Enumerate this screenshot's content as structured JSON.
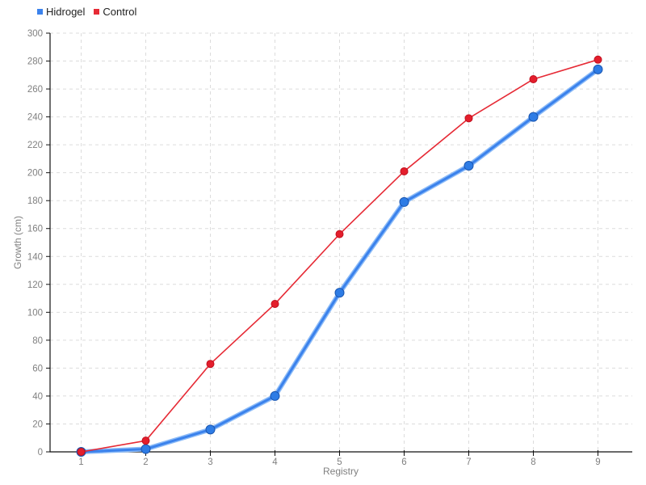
{
  "chart_data": {
    "type": "line",
    "title": "",
    "xlabel": "Registry",
    "ylabel": "Growth (cm)",
    "x": [
      1,
      2,
      3,
      4,
      5,
      6,
      7,
      8,
      9
    ],
    "xlim": [
      1,
      9
    ],
    "ylim": [
      0,
      300
    ],
    "ytick_step": 20,
    "grid": true,
    "legend_position": "top-left",
    "series": [
      {
        "name": "Hidrogel",
        "values": [
          0,
          2,
          16,
          40,
          114,
          179,
          205,
          240,
          274
        ],
        "line_color": "#3b82ec",
        "halo_color": "#8cbbf7",
        "line_width": 3,
        "halo_width": 6,
        "marker_fill": "#2e7ce5",
        "marker_stroke": "#1a56b0",
        "marker_radius": 5.5
      },
      {
        "name": "Control",
        "values": [
          0,
          8,
          63,
          106,
          156,
          201,
          239,
          267,
          281
        ],
        "line_color": "#e62a35",
        "halo_color": null,
        "line_width": 1.6,
        "halo_width": 0,
        "marker_fill": "#e41e2c",
        "marker_stroke": "#c0101f",
        "marker_radius": 4.5
      }
    ],
    "colors": {
      "axis": "#111111",
      "grid": "#dcdcdc",
      "tick_label": "#808080",
      "axis_label": "#808080",
      "legend_text": "#222222",
      "background": "#ffffff"
    }
  }
}
